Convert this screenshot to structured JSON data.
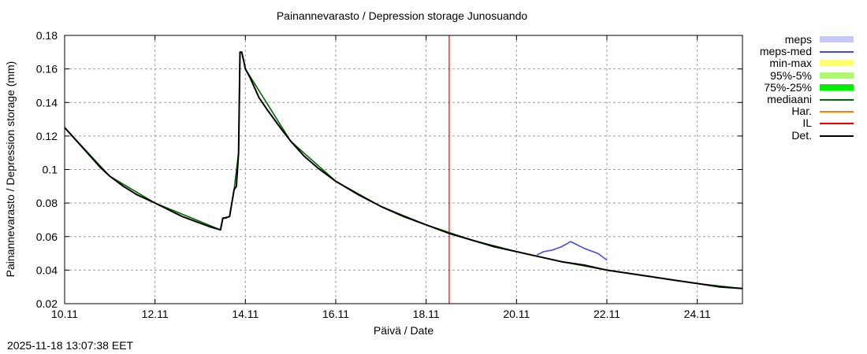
{
  "title": "Painannevarasto / Depression storage   Junosuando",
  "timestamp": "2025-11-18 13:07:38 EET",
  "legend": [
    {
      "label": "meps",
      "color": "#c8c8f8",
      "kind": "band"
    },
    {
      "label": "meps-med",
      "color": "#4848e0",
      "kind": "line"
    },
    {
      "label": "min-max",
      "color": "#ffff70",
      "kind": "band"
    },
    {
      "label": "95%-5%",
      "color": "#b0f870",
      "kind": "band"
    },
    {
      "label": "75%-25%",
      "color": "#00f000",
      "kind": "band"
    },
    {
      "label": "mediaani",
      "color": "#006800",
      "kind": "line"
    },
    {
      "label": "Har.",
      "color": "#ff8000",
      "kind": "line"
    },
    {
      "label": "IL",
      "color": "#f00000",
      "kind": "line"
    },
    {
      "label": "Det.",
      "color": "#000000",
      "kind": "line"
    }
  ],
  "chart_data": {
    "type": "line",
    "title": "Painannevarasto / Depression storage   Junosuando",
    "xlabel": "Päivä / Date",
    "ylabel": "Painannevarasto / Depression storage (mm)",
    "x_unit": "day of November 2025",
    "xlim": [
      10.0,
      25.0
    ],
    "ylim": [
      0.02,
      0.18
    ],
    "x_ticks": [
      10,
      12,
      14,
      16,
      18,
      20,
      22,
      24
    ],
    "x_tick_labels": [
      "10.11",
      "12.11",
      "14.11",
      "16.11",
      "18.11",
      "20.11",
      "22.11",
      "24.11"
    ],
    "y_ticks": [
      0.02,
      0.04,
      0.06,
      0.08,
      0.1,
      0.12,
      0.14,
      0.16,
      0.18
    ],
    "y_tick_labels": [
      "0.02",
      "0.04",
      "0.06",
      "0.08",
      "0.1",
      "0.12",
      "0.14",
      "0.16",
      "0.18"
    ],
    "grid": true,
    "legend_position": "right-outside",
    "vertical_markers": [
      {
        "name": "IL",
        "x": 18.51,
        "color": "#f00000"
      }
    ],
    "series": [
      {
        "name": "Det.",
        "color": "#000000",
        "x": [
          10.0,
          10.2,
          10.5,
          10.8,
          11.0,
          11.3,
          11.6,
          12.0,
          12.3,
          12.6,
          12.9,
          13.2,
          13.45,
          13.5,
          13.55,
          13.65,
          13.75,
          13.8,
          13.85,
          13.88,
          13.92,
          13.97,
          14.0,
          14.1,
          14.3,
          14.5,
          14.8,
          15.0,
          15.3,
          15.6,
          16.0,
          16.5,
          17.0,
          17.5,
          18.0,
          18.5,
          19.0,
          19.5,
          20.0,
          20.5,
          21.0,
          21.5,
          22.0,
          22.5,
          23.0,
          23.5,
          24.0,
          24.5,
          25.0
        ],
        "y": [
          0.125,
          0.119,
          0.11,
          0.101,
          0.096,
          0.09,
          0.085,
          0.08,
          0.076,
          0.072,
          0.069,
          0.066,
          0.064,
          0.071,
          0.071,
          0.072,
          0.088,
          0.09,
          0.11,
          0.17,
          0.17,
          0.164,
          0.16,
          0.155,
          0.143,
          0.135,
          0.124,
          0.117,
          0.108,
          0.101,
          0.093,
          0.085,
          0.078,
          0.072,
          0.067,
          0.062,
          0.058,
          0.054,
          0.051,
          0.048,
          0.045,
          0.043,
          0.04,
          0.038,
          0.036,
          0.034,
          0.032,
          0.03,
          0.029
        ]
      },
      {
        "name": "mediaani",
        "color": "#006800",
        "x": [
          10.0,
          11.0,
          12.0,
          13.45,
          13.5,
          13.65,
          13.75,
          13.85,
          13.88,
          13.92,
          14.0,
          15.0,
          16.0,
          17.0,
          18.0,
          19.0,
          20.0,
          21.0,
          22.0,
          23.0,
          24.0,
          25.0
        ],
        "y": [
          0.125,
          0.096,
          0.08,
          0.064,
          0.071,
          0.072,
          0.088,
          0.11,
          0.17,
          0.17,
          0.16,
          0.117,
          0.093,
          0.078,
          0.067,
          0.058,
          0.051,
          0.045,
          0.04,
          0.036,
          0.032,
          0.029
        ]
      },
      {
        "name": "meps-med",
        "color": "#4848e0",
        "x": [
          20.45,
          20.6,
          20.8,
          21.0,
          21.2,
          21.5,
          21.8,
          22.0
        ],
        "y": [
          0.049,
          0.051,
          0.052,
          0.054,
          0.057,
          0.053,
          0.05,
          0.046
        ]
      }
    ]
  }
}
